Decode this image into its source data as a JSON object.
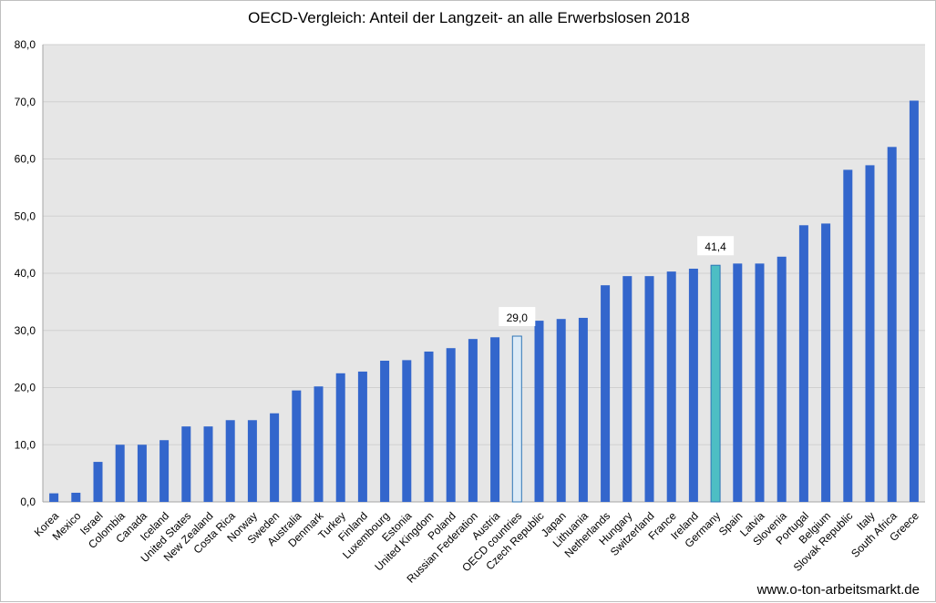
{
  "footer": {
    "credit": "www.o-ton-arbeitsmarkt.de"
  },
  "colors": {
    "plot_background": "#e6e6e6",
    "gridline": "#d0d0d0",
    "bar": "#3366cc",
    "bar_oecd": "#ddebf7",
    "bar_germany": "#4dbec4",
    "highlight_border": "#2e75b6"
  },
  "chart_data": {
    "type": "bar",
    "title": "OECD-Vergleich: Anteil der Langzeit- an alle Erwerbslosen 2018",
    "xlabel": "",
    "ylabel": "",
    "ylim": [
      0,
      80
    ],
    "yticks": [
      "0,0",
      "10,0",
      "20,0",
      "30,0",
      "40,0",
      "50,0",
      "60,0",
      "70,0",
      "80,0"
    ],
    "grid": true,
    "legend": "none",
    "categories": [
      "Korea",
      "Mexico",
      "Israel",
      "Colombia",
      "Canada",
      "Iceland",
      "United States",
      "New Zealand",
      "Costa Rica",
      "Norway",
      "Sweden",
      "Australia",
      "Denmark",
      "Turkey",
      "Finland",
      "Luxembourg",
      "Estonia",
      "United Kingdom",
      "Poland",
      "Russian Federation",
      "Austria",
      "OECD countries",
      "Czech Republic",
      "Japan",
      "Lithuania",
      "Netherlands",
      "Hungary",
      "Switzerland",
      "France",
      "Ireland",
      "Germany",
      "Spain",
      "Latvia",
      "Slovenia",
      "Portugal",
      "Belgium",
      "Slovak Republic",
      "Italy",
      "South Africa",
      "Greece"
    ],
    "values": [
      1.5,
      1.6,
      7.0,
      10.0,
      10.0,
      10.8,
      13.2,
      13.2,
      14.3,
      14.3,
      15.5,
      19.5,
      20.2,
      22.5,
      22.8,
      24.7,
      24.8,
      26.3,
      26.9,
      28.5,
      28.8,
      29.0,
      31.7,
      32.0,
      32.2,
      37.9,
      39.5,
      39.5,
      40.3,
      40.8,
      41.4,
      41.7,
      41.7,
      42.9,
      48.4,
      48.7,
      58.1,
      58.9,
      62.1,
      70.2
    ],
    "highlights": [
      "OECD countries",
      "Germany"
    ],
    "data_labels": [
      {
        "category": "OECD countries",
        "text": "29,0"
      },
      {
        "category": "Germany",
        "text": "41,4"
      }
    ]
  }
}
